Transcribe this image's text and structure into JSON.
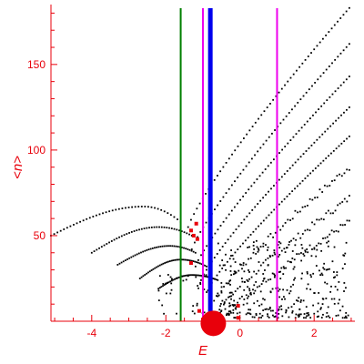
{
  "chart_data": {
    "type": "scatter",
    "title": "",
    "xlabel": "E",
    "ylabel": "<n>",
    "xlim": [
      -5.1,
      3.1
    ],
    "ylim": [
      0,
      185
    ],
    "xticks": [
      -4,
      -2,
      0,
      2
    ],
    "yticks": [
      50,
      100,
      150
    ],
    "grid": false,
    "colors": {
      "axis": "#e8000b",
      "points": "#000000",
      "highlight": "#e8000b",
      "green_line": "#007f00",
      "blue_line": "#0000ee",
      "magenta_line": "#ee00ee"
    },
    "vertical_lines": [
      {
        "x": -1.6,
        "color": "green",
        "width": "thin"
      },
      {
        "x": -1.0,
        "color": "magenta",
        "width": "thin"
      },
      {
        "x": -0.8,
        "color": "blue",
        "width": "thick"
      },
      {
        "x": 1.0,
        "color": "magenta",
        "width": "thin"
      }
    ],
    "branches": [
      {
        "x_start": -5.1,
        "y_start": 50,
        "x_peak": -2.6,
        "y_peak": 67,
        "x_end": -1.6,
        "y_end": 58
      },
      {
        "x_start": -4.0,
        "y_start": 40,
        "x_peak": -2.2,
        "y_peak": 55,
        "x_end": -1.3,
        "y_end": 50
      },
      {
        "x_start": -3.3,
        "y_start": 33,
        "x_peak": -1.9,
        "y_peak": 44,
        "x_end": -1.2,
        "y_end": 40
      },
      {
        "x_start": -2.7,
        "y_start": 25,
        "x_peak": -1.6,
        "y_peak": 36,
        "x_end": -0.9,
        "y_end": 32
      },
      {
        "x_start": -2.2,
        "y_start": 19,
        "x_peak": -1.3,
        "y_peak": 27,
        "x_end": -0.6,
        "y_end": 24
      }
    ],
    "diagonal_series": [
      {
        "x_start": -1.4,
        "y_start": 55,
        "x_end": 2.95,
        "y_end": 183
      },
      {
        "x_start": -1.3,
        "y_start": 42,
        "x_end": 2.95,
        "y_end": 162
      },
      {
        "x_start": -1.2,
        "y_start": 32,
        "x_end": 2.95,
        "y_end": 143
      },
      {
        "x_start": -1.05,
        "y_start": 24,
        "x_end": 2.95,
        "y_end": 125
      },
      {
        "x_start": -0.9,
        "y_start": 17,
        "x_end": 2.95,
        "y_end": 108
      },
      {
        "x_start": -0.7,
        "y_start": 12,
        "x_end": 2.95,
        "y_end": 90
      },
      {
        "x_start": -0.5,
        "y_start": 8,
        "x_end": 2.95,
        "y_end": 72
      },
      {
        "x_start": -0.3,
        "y_start": 5,
        "x_end": 2.95,
        "y_end": 58
      }
    ],
    "red_points": [
      {
        "x": -1.18,
        "y": 57
      },
      {
        "x": -1.32,
        "y": 53
      },
      {
        "x": -1.25,
        "y": 50
      },
      {
        "x": -1.15,
        "y": 48
      },
      {
        "x": -1.32,
        "y": 34
      },
      {
        "x": -1.1,
        "y": 6
      },
      {
        "x": -0.05,
        "y": 9
      },
      {
        "x": -0.05,
        "y": 2
      },
      {
        "x": -1.0,
        "y": 1
      }
    ],
    "red_large_point": {
      "x": -0.72,
      "y": 3
    }
  }
}
